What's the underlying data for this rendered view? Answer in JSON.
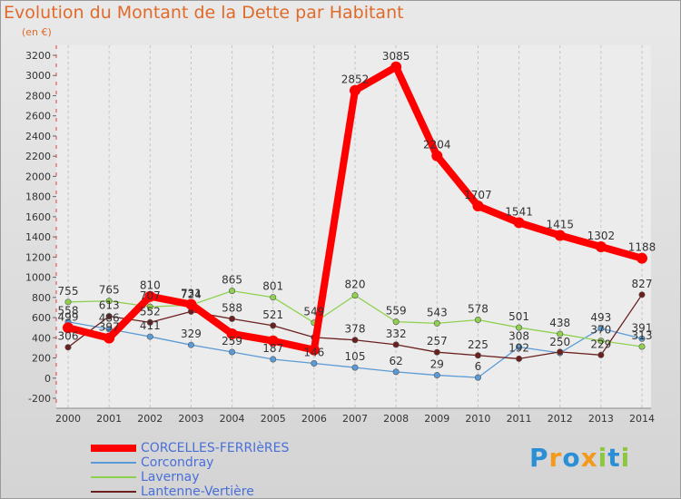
{
  "chart_data": {
    "type": "line",
    "title": "Evolution du Montant de la Dette par Habitant",
    "subtitle": "(en €)",
    "x": [
      "2000",
      "2001",
      "2002",
      "2003",
      "2004",
      "2005",
      "2006",
      "2007",
      "2008",
      "2009",
      "2010",
      "2011",
      "2012",
      "2013",
      "2014"
    ],
    "yticks": [
      "-200",
      "0",
      "200",
      "400",
      "600",
      "800",
      "1000",
      "1200",
      "1400",
      "1600",
      "1800",
      "2000",
      "2200",
      "2400",
      "2600",
      "2800",
      "3000",
      "3200"
    ],
    "ylim": [
      -200,
      3200
    ],
    "grid": "vertical dashed",
    "legend_position": "bottom-left",
    "series": [
      {
        "name": "CORCELLES-FERRIèRES",
        "color": "#ff0000",
        "values": [
          499,
          397,
          810,
          731,
          439,
          369,
          280,
          2852,
          3085,
          2204,
          1707,
          1541,
          1415,
          1302,
          1188
        ],
        "labels": [
          "499",
          "397",
          "810",
          "731",
          "",
          "",
          "",
          "2852",
          "3085",
          "2204",
          "1707",
          "1541",
          "1415",
          "1302",
          "1188"
        ]
      },
      {
        "name": "Corcondray",
        "color": "#5b9bd5",
        "values": [
          558,
          486,
          411,
          329,
          259,
          187,
          146,
          105,
          62,
          29,
          6,
          308,
          250,
          493,
          391
        ],
        "labels": [
          "558",
          "486",
          "411",
          "329",
          "259",
          "187",
          "146",
          "105",
          "62",
          "29",
          "6",
          "308",
          "250",
          "493",
          "391"
        ]
      },
      {
        "name": "Lavernay",
        "color": "#8fd14f",
        "values": [
          755,
          765,
          707,
          724,
          865,
          801,
          549,
          820,
          559,
          543,
          578,
          501,
          438,
          370,
          313
        ],
        "labels": [
          "755",
          "765",
          "707",
          "724",
          "865",
          "801",
          "549",
          "820",
          "559",
          "543",
          "578",
          "501",
          "438",
          "370",
          "313"
        ]
      },
      {
        "name": "Lantenne-Vertière",
        "color": "#6b1f1f",
        "values": [
          306,
          613,
          552,
          660,
          588,
          521,
          404,
          378,
          332,
          257,
          225,
          192,
          260,
          229,
          827
        ],
        "labels": [
          "306",
          "613",
          "552",
          "",
          "588",
          "521",
          "",
          "378",
          "332",
          "257",
          "225",
          "192",
          "",
          "229",
          "827"
        ]
      }
    ]
  },
  "logo": {
    "letters": [
      "P",
      "r",
      "o",
      "x",
      "i",
      "t",
      "i"
    ],
    "colors": [
      "#2b8fd6",
      "#f39a1e",
      "#2b8fd6",
      "#f39a1e",
      "#8dc63f",
      "#2b8fd6",
      "#8dc63f"
    ]
  }
}
